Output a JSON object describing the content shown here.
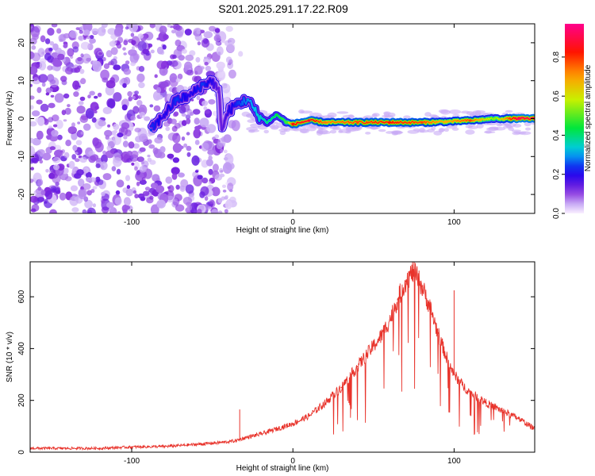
{
  "title": "S201.2025.291.17.22.R09",
  "chart_data": [
    {
      "type": "heatmap",
      "xlabel": "Height of straight line (km)",
      "ylabel": "Frequency (Hz)",
      "xlim": [
        -163,
        150
      ],
      "ylim": [
        -25,
        25
      ],
      "xticks": [
        -100,
        0,
        100
      ],
      "yticks": [
        20,
        10,
        0,
        -10,
        -20
      ],
      "colorbar": {
        "label": "Normalized spectral amplitude",
        "range": [
          0.0,
          0.97
        ],
        "ticks": [
          0.0,
          0.2,
          0.4,
          0.6,
          0.8
        ],
        "tick_labels": [
          "0.0",
          "0.2",
          "0.4",
          "0.6",
          "0.8"
        ]
      },
      "noise_region": {
        "x_from": -163,
        "x_to": -37,
        "y_from": -25,
        "y_to": 25,
        "typical_amplitude": 0.05
      },
      "ridge": [
        {
          "x": -88,
          "freq": -3,
          "amp": 0.25
        },
        {
          "x": -80,
          "freq": 1,
          "amp": 0.2
        },
        {
          "x": -72,
          "freq": 5,
          "amp": 0.25
        },
        {
          "x": -64,
          "freq": 6,
          "amp": 0.2
        },
        {
          "x": -56,
          "freq": 9,
          "amp": 0.25
        },
        {
          "x": -50,
          "freq": 10,
          "amp": 0.2
        },
        {
          "x": -46,
          "freq": 7,
          "amp": 0.15
        },
        {
          "x": -44,
          "freq": -3,
          "amp": 0.15
        },
        {
          "x": -40,
          "freq": 2,
          "amp": 0.2
        },
        {
          "x": -34,
          "freq": 4,
          "amp": 0.25
        },
        {
          "x": -28,
          "freq": 5,
          "amp": 0.3
        },
        {
          "x": -22,
          "freq": 1,
          "amp": 0.35
        },
        {
          "x": -16,
          "freq": -1,
          "amp": 0.4
        },
        {
          "x": -10,
          "freq": 1,
          "amp": 0.45
        },
        {
          "x": -4,
          "freq": -1,
          "amp": 0.5
        },
        {
          "x": 0,
          "freq": -1.5,
          "amp": 0.85
        },
        {
          "x": 10,
          "freq": -0.5,
          "amp": 0.9
        },
        {
          "x": 20,
          "freq": -1,
          "amp": 0.75
        },
        {
          "x": 40,
          "freq": -1,
          "amp": 0.8
        },
        {
          "x": 60,
          "freq": -1,
          "amp": 0.85
        },
        {
          "x": 80,
          "freq": -1,
          "amp": 0.8
        },
        {
          "x": 95,
          "freq": -0.8,
          "amp": 0.7
        },
        {
          "x": 110,
          "freq": -0.5,
          "amp": 0.8
        },
        {
          "x": 125,
          "freq": 0,
          "amp": 0.55
        },
        {
          "x": 140,
          "freq": 0,
          "amp": 0.95
        },
        {
          "x": 150,
          "freq": 0,
          "amp": 0.9
        }
      ]
    },
    {
      "type": "line",
      "xlabel": "Height of straight line (km)",
      "ylabel": "SNR (10 * v/v)",
      "xlim": [
        -163,
        150
      ],
      "ylim": [
        0,
        735
      ],
      "xticks": [
        -100,
        0,
        100
      ],
      "yticks": [
        0,
        200,
        400,
        600
      ],
      "series": [
        {
          "name": "SNR",
          "color": "#e8332b",
          "x": [
            -163,
            -140,
            -120,
            -100,
            -80,
            -60,
            -40,
            -35,
            -30,
            -20,
            -10,
            0,
            10,
            20,
            30,
            40,
            50,
            55,
            60,
            65,
            70,
            75,
            80,
            85,
            90,
            95,
            100,
            105,
            110,
            120,
            130,
            140,
            150
          ],
          "y": [
            15,
            15,
            15,
            20,
            22,
            30,
            40,
            45,
            55,
            70,
            90,
            110,
            140,
            190,
            250,
            330,
            410,
            450,
            510,
            590,
            660,
            700,
            640,
            560,
            460,
            370,
            300,
            260,
            230,
            190,
            160,
            130,
            90
          ]
        }
      ],
      "spikes": [
        {
          "x": -33,
          "y": 165
        },
        {
          "x": 100,
          "y": 625
        }
      ]
    }
  ]
}
